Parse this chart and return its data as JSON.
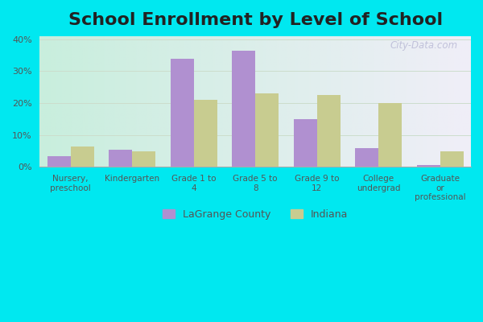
{
  "title": "School Enrollment by Level of School",
  "categories": [
    "Nursery,\npreschool",
    "Kindergarten",
    "Grade 1 to\n4",
    "Grade 5 to\n8",
    "Grade 9 to\n12",
    "College\nundergrad",
    "Graduate\nor\nprofessional"
  ],
  "lagrange_values": [
    3.5,
    5.5,
    34.0,
    36.5,
    15.0,
    6.0,
    0.5
  ],
  "indiana_values": [
    6.5,
    5.0,
    21.0,
    23.0,
    22.5,
    20.0,
    5.0
  ],
  "lagrange_color": "#b090d0",
  "indiana_color": "#c8cc90",
  "ylim": [
    0,
    41
  ],
  "yticks": [
    0,
    10,
    20,
    30,
    40
  ],
  "legend_labels": [
    "LaGrange County",
    "Indiana"
  ],
  "bg_color_left": "#c8eedd",
  "bg_color_right": "#f0eef8",
  "outer_bg": "#00e8f0",
  "title_fontsize": 16,
  "bar_width": 0.38,
  "watermark": "City-Data.com",
  "grid_color": "#ccddcc"
}
